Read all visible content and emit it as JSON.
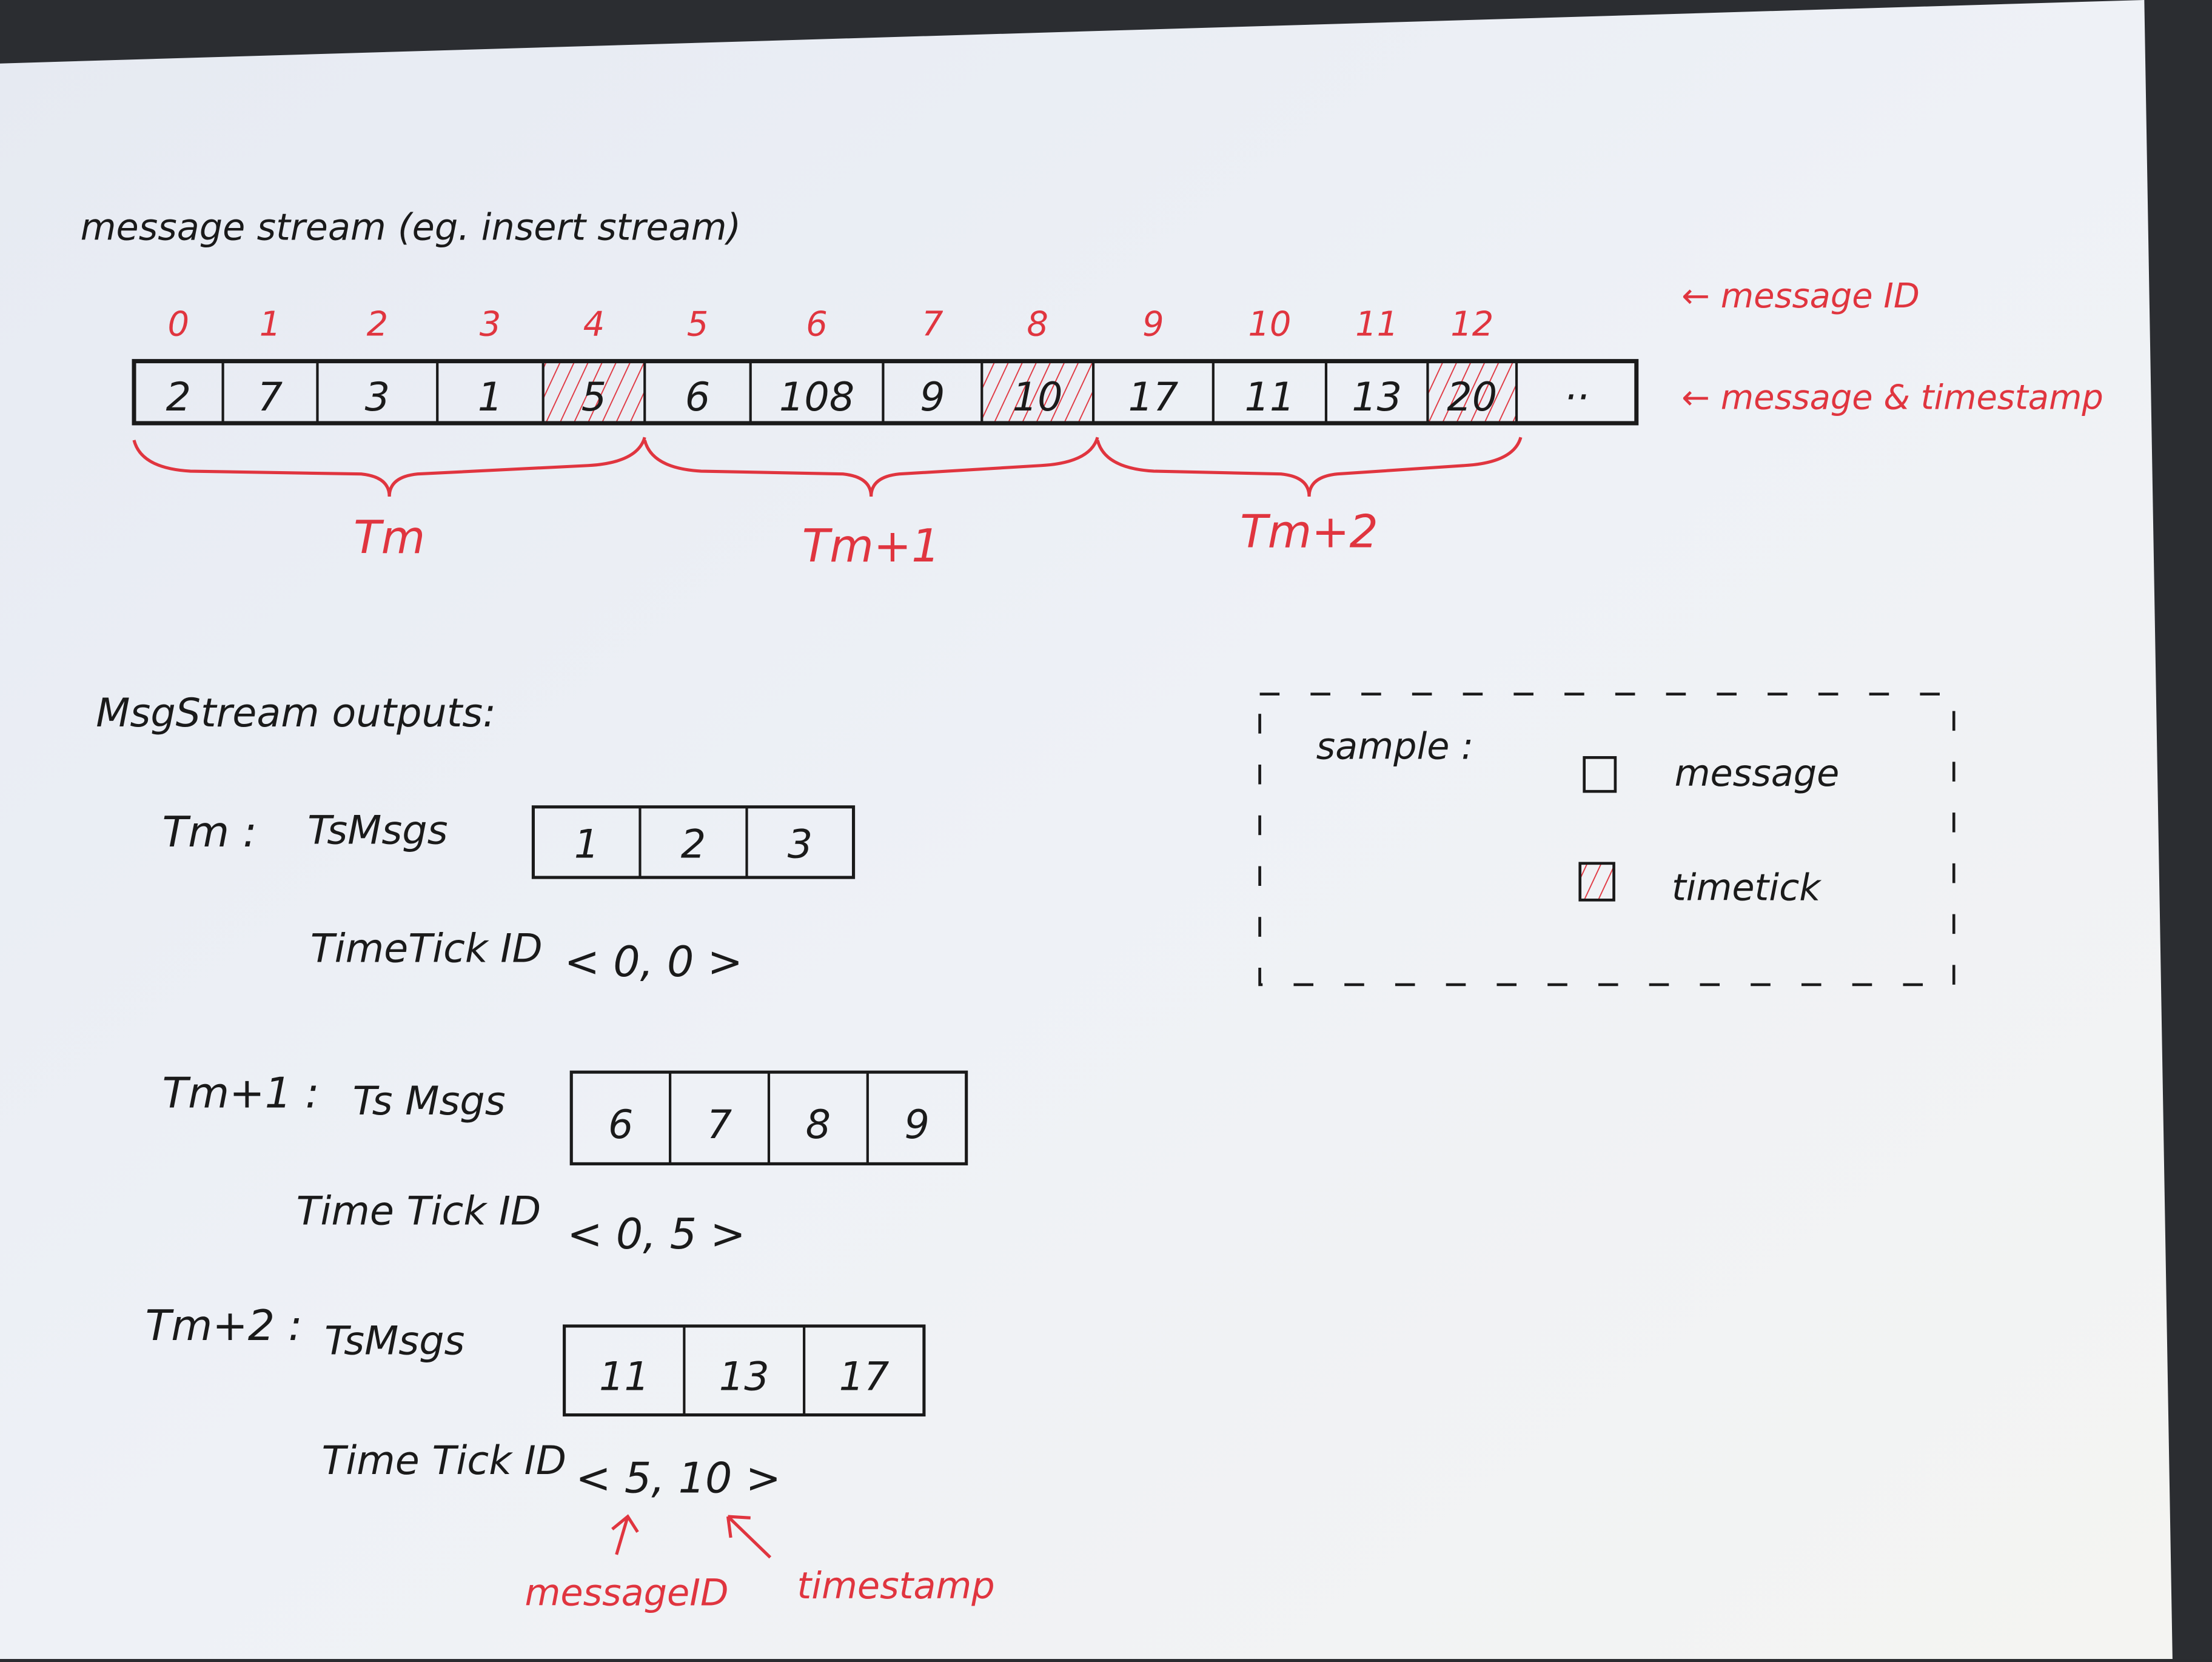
{
  "colors": {
    "ink": "#1a1a1a",
    "red_pen": "#e0353f",
    "paper": "#eef1f6"
  },
  "title": "message stream (eg. insert stream)",
  "stream": {
    "ids": [
      "0",
      "1",
      "2",
      "3",
      "4",
      "5",
      "6",
      "7",
      "8",
      "9",
      "10",
      "11",
      "12"
    ],
    "timestamps": [
      "2",
      "7",
      "3",
      "1",
      "5",
      "6",
      "108",
      "9",
      "10",
      "17",
      "11",
      "13",
      "20",
      "··"
    ],
    "timetick_indices": [
      4,
      8,
      12
    ],
    "label_ids": "← message ID",
    "label_values": "← message & timestamp",
    "groups": [
      {
        "label": "Tm",
        "from_id": 0,
        "to_id": 4
      },
      {
        "label": "Tm+1",
        "from_id": 5,
        "to_id": 8
      },
      {
        "label": "Tm+2",
        "from_id": 9,
        "to_id": 12
      }
    ]
  },
  "outputs": {
    "heading": "MsgStream outputs:",
    "rows": [
      {
        "period": "Tm :",
        "msgs_label": "TsMsgs",
        "msgs": [
          "1",
          "2",
          "3"
        ],
        "tick_label": "TimeTick ID",
        "tick_value": "< 0, 0 >"
      },
      {
        "period": "Tm+1 :",
        "msgs_label": "Ts Msgs",
        "msgs": [
          "6",
          "7",
          "8",
          "9"
        ],
        "tick_label": "Time Tick ID",
        "tick_value": "< 0, 5 >"
      },
      {
        "period": "Tm+2 :",
        "msgs_label": "TsMsgs",
        "msgs": [
          "11",
          "13",
          "17"
        ],
        "tick_label": "Time Tick ID",
        "tick_value": "< 5, 10 >"
      }
    ],
    "annotation_id": "messageID",
    "annotation_ts": "timestamp"
  },
  "legend": {
    "title": "sample :",
    "items": [
      {
        "icon": "empty-square",
        "label": "message"
      },
      {
        "icon": "hatched-square",
        "label": "timetick"
      }
    ]
  }
}
